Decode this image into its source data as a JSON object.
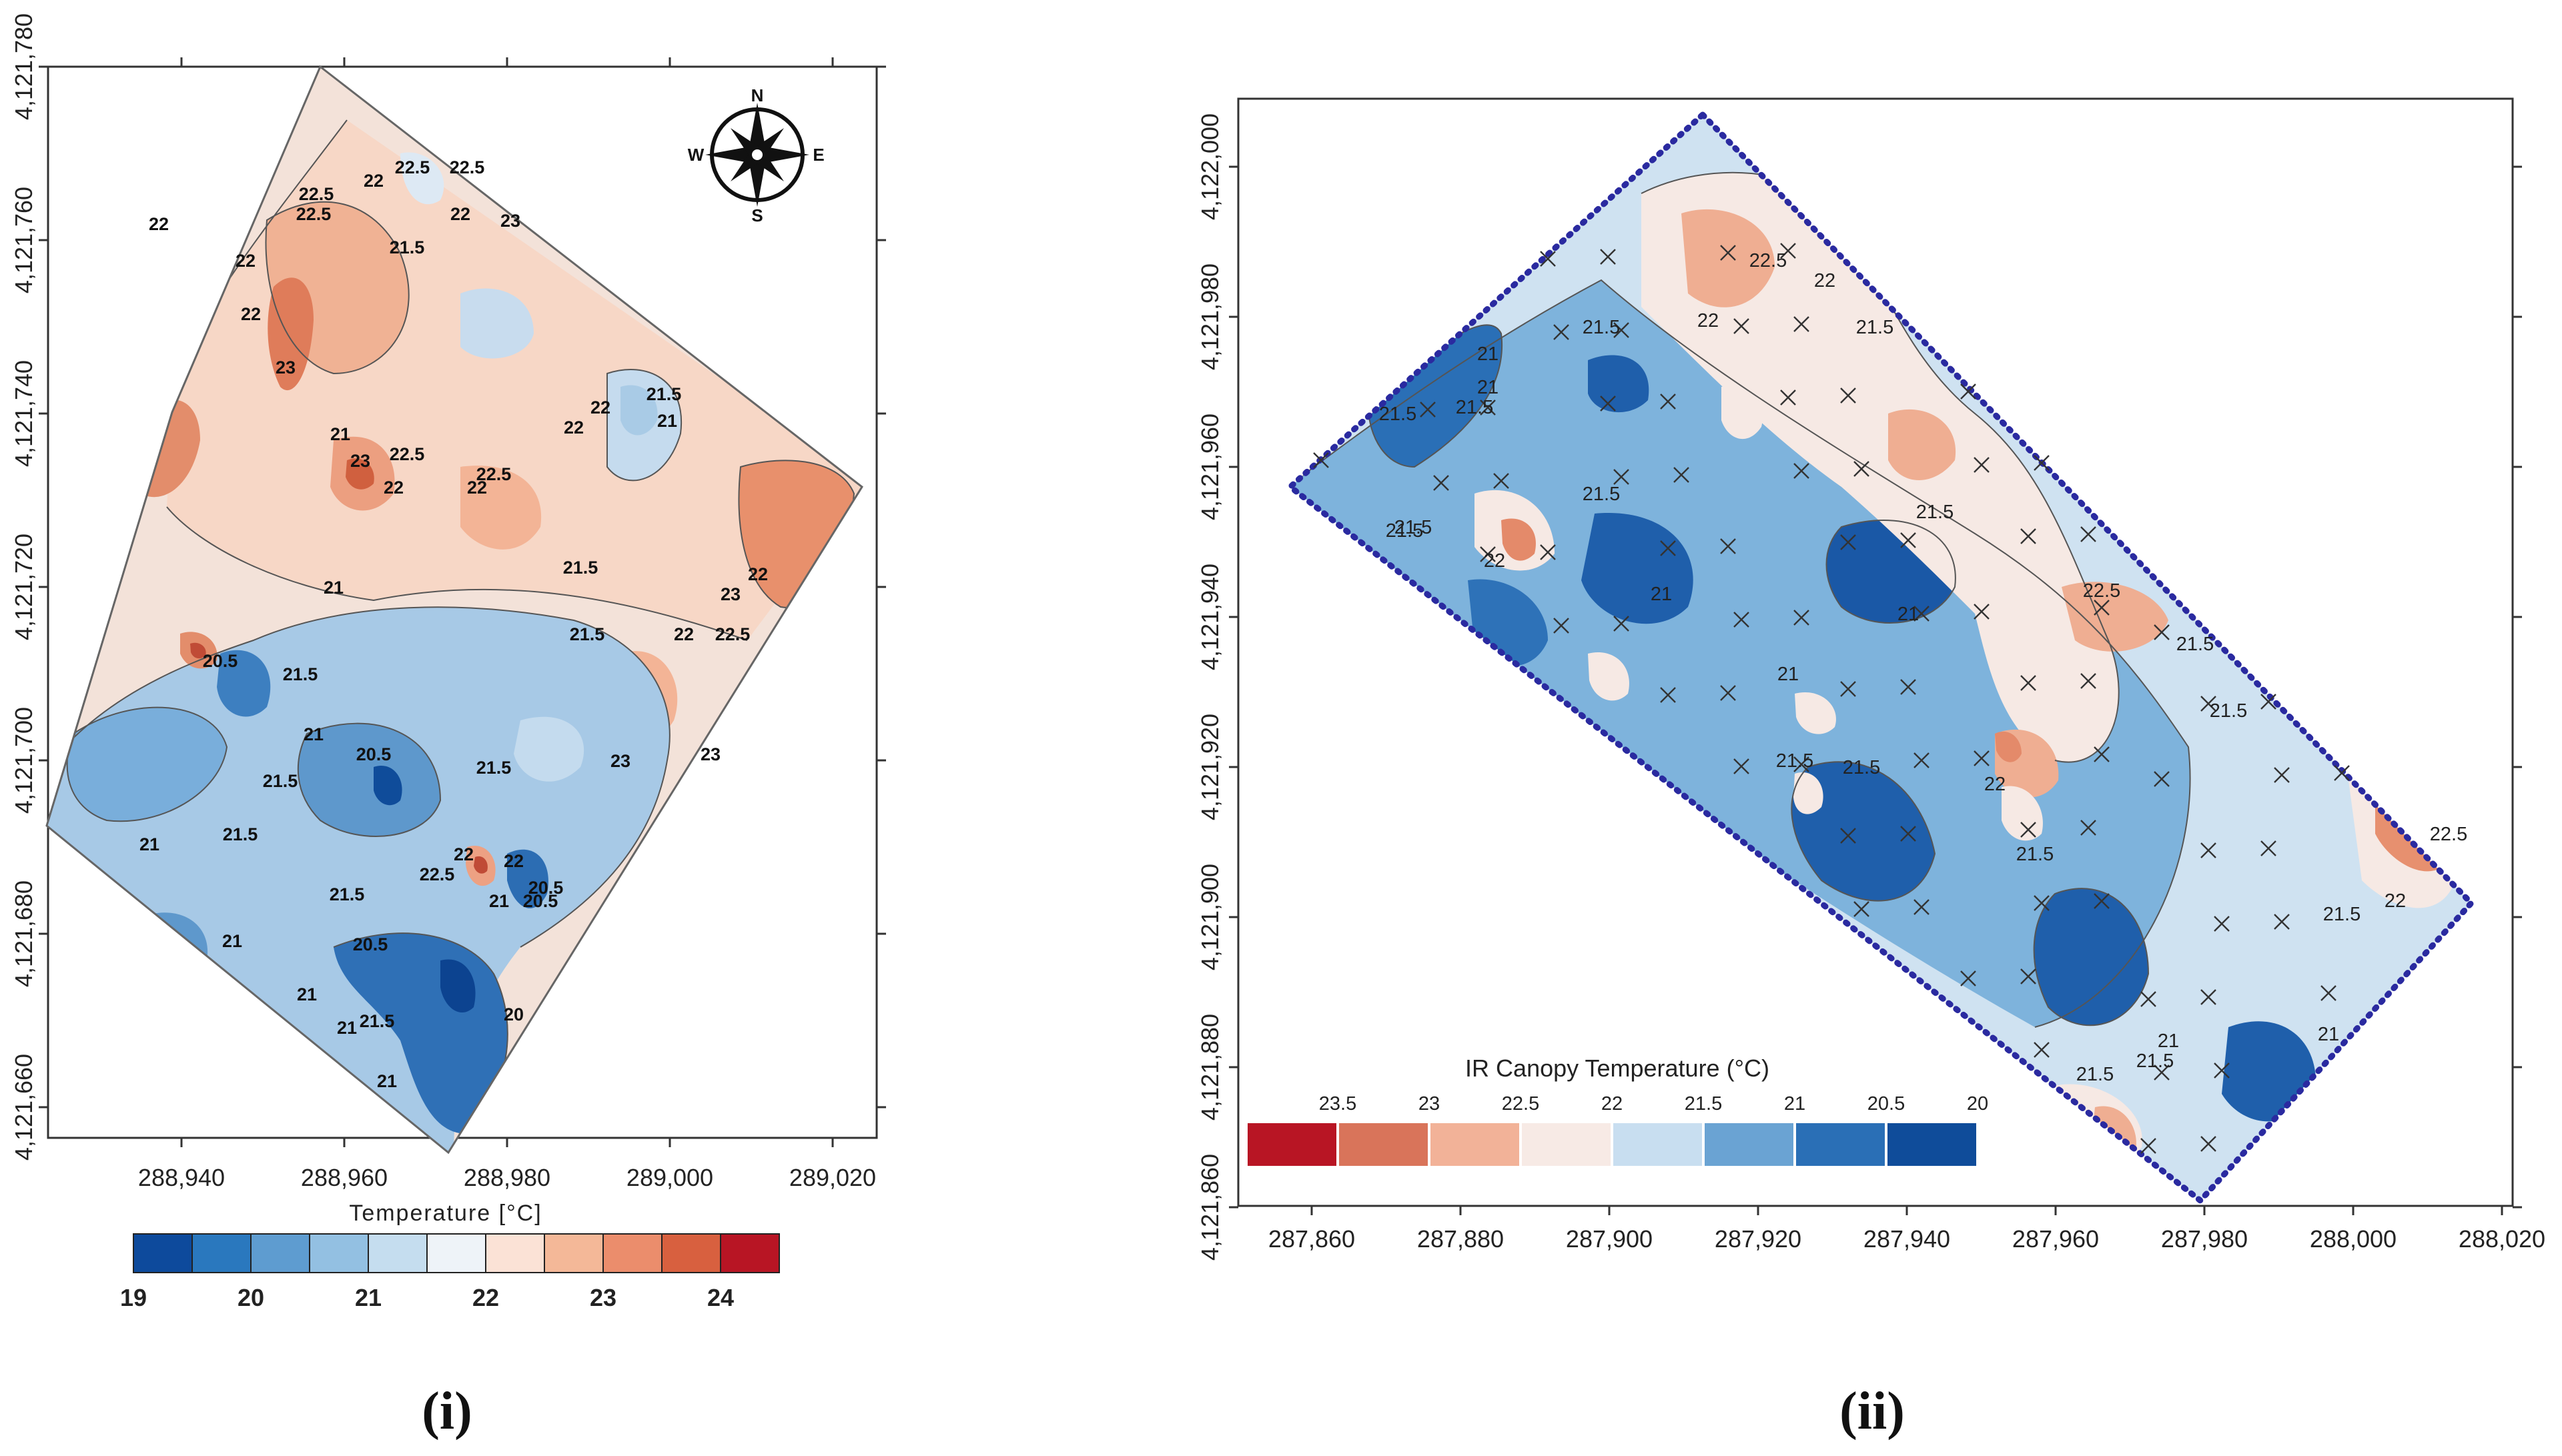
{
  "panels": {
    "left": {
      "label": "(i)",
      "x_ticks": [
        "288,940",
        "288,960",
        "288,980",
        "289,000",
        "289,020"
      ],
      "y_ticks": [
        "4,121,780",
        "4,121,760",
        "4,121,740",
        "4,121,720",
        "4,121,700",
        "4,121,680",
        "4,121,660"
      ],
      "legend_title": "Temperature [°C]",
      "legend_ticks": [
        "19",
        "20",
        "21",
        "22",
        "23",
        "24"
      ],
      "legend_colors": [
        "#0d4a9c",
        "#2a78be",
        "#5e9cd0",
        "#93c0e2",
        "#c5ddef",
        "#eef3f8",
        "#fbe2d6",
        "#f4b898",
        "#eb8d6c",
        "#d8603f",
        "#b81524"
      ],
      "compass": {
        "n": "N",
        "s": "S",
        "e": "E",
        "w": "W"
      },
      "contour_labels": [
        "22",
        "22",
        "22.5",
        "22.5",
        "22",
        "22",
        "21.5",
        "22",
        "22.5",
        "23",
        "22.5",
        "23",
        "21",
        "22",
        "23",
        "22.5",
        "22",
        "22.5",
        "22",
        "21.5",
        "22",
        "21.5",
        "21",
        "22",
        "23",
        "22.5",
        "21.5",
        "22",
        "20.5",
        "21.5",
        "21",
        "21",
        "21.5",
        "20.5",
        "21.5",
        "22",
        "22.5",
        "23",
        "21.5",
        "21",
        "21",
        "21.5",
        "20.5",
        "22",
        "21",
        "20.5",
        "21",
        "21.5",
        "20.5",
        "21",
        "21",
        "20",
        "23"
      ]
    },
    "right": {
      "label": "(ii)",
      "x_ticks": [
        "287,860",
        "287,880",
        "287,900",
        "287,920",
        "287,940",
        "287,960",
        "287,980",
        "288,000",
        "288,020"
      ],
      "y_ticks": [
        "4,122,000",
        "4,121,980",
        "4,121,960",
        "4,121,940",
        "4,121,920",
        "4,121,900",
        "4,121,880",
        "4,121,860"
      ],
      "legend_title": "IR Canopy Temperature (°C)",
      "legend_ticks": [
        "23.5",
        "23",
        "22.5",
        "22",
        "21.5",
        "21",
        "20.5",
        "20"
      ],
      "legend_colors": [
        "#b81524",
        "#d9745a",
        "#f2b298",
        "#f7eae5",
        "#c8def0",
        "#6aa3d3",
        "#2a6fb6",
        "#0f4c9a"
      ],
      "contour_labels": [
        "22.5",
        "22",
        "21.5",
        "21",
        "21.5",
        "21.5",
        "21",
        "21.5",
        "22",
        "21.5",
        "21.5",
        "21",
        "21",
        "21.5",
        "21.5",
        "22.5",
        "22",
        "21.5",
        "21.5",
        "21",
        "22",
        "21.5",
        "21.5",
        "21.5",
        "22.5",
        "22",
        "21.5",
        "21",
        "21.5",
        "21.5",
        "21"
      ]
    }
  }
}
